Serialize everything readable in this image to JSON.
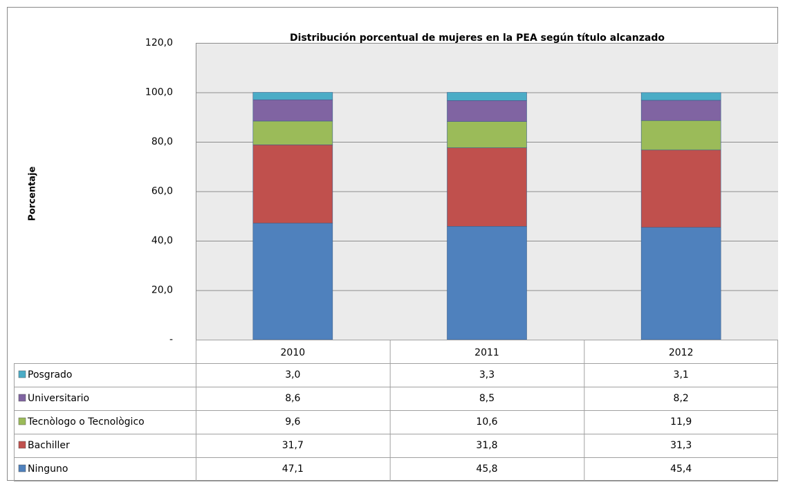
{
  "chart_data": {
    "type": "stacked-bar",
    "title": "Distribución  porcentual de mujeres en la PEA según título alcanzado",
    "y_label": "Porcentaje",
    "categories": [
      "2010",
      "2011",
      "2012"
    ],
    "series": [
      {
        "name": "Ninguno",
        "color": "#4f81bd",
        "values": [
          47.1,
          45.8,
          45.4
        ],
        "value_labels": [
          "47,1",
          "45,8",
          "45,4"
        ]
      },
      {
        "name": "Bachiller",
        "color": "#c0504d",
        "values": [
          31.7,
          31.8,
          31.3
        ],
        "value_labels": [
          "31,7",
          "31,8",
          "31,3"
        ]
      },
      {
        "name": "Tecnòlogo o Tecnològico",
        "color": "#9bbb59",
        "values": [
          9.6,
          10.6,
          11.9
        ],
        "value_labels": [
          "9,6",
          "10,6",
          "11,9"
        ]
      },
      {
        "name": "Universitario",
        "color": "#8064a2",
        "values": [
          8.6,
          8.5,
          8.2
        ],
        "value_labels": [
          "8,6",
          "8,5",
          "8,2"
        ]
      },
      {
        "name": "Posgrado",
        "color": "#4bacc6",
        "values": [
          3.0,
          3.3,
          3.1
        ],
        "value_labels": [
          "3,0",
          "3,3",
          "3,1"
        ]
      }
    ],
    "ylim": [
      0,
      120
    ],
    "yticks": [
      {
        "value": 0,
        "label": "-"
      },
      {
        "value": 20,
        "label": "20,0"
      },
      {
        "value": 40,
        "label": "40,0"
      },
      {
        "value": 60,
        "label": "60,0"
      },
      {
        "value": 80,
        "label": "80,0"
      },
      {
        "value": 100,
        "label": "100,0"
      },
      {
        "value": 120,
        "label": "120,0"
      }
    ],
    "grid": true
  }
}
